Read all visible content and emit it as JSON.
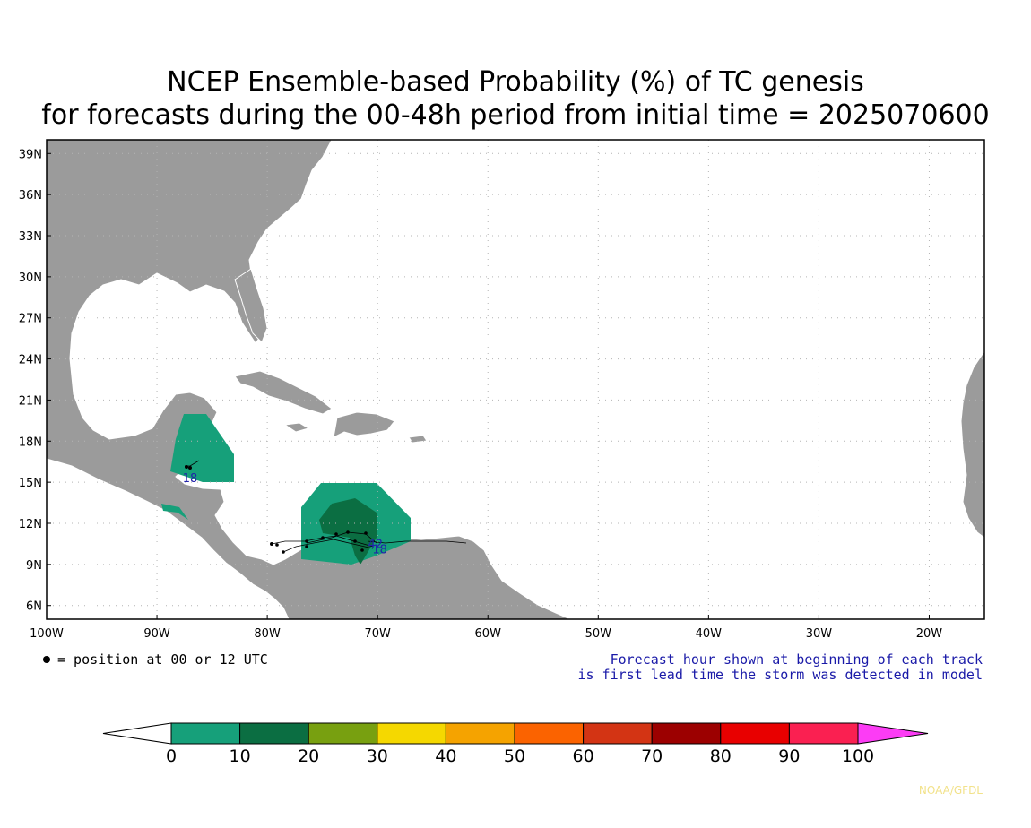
{
  "title": {
    "line1": "NCEP Ensemble-based Probability (%) of TC genesis",
    "line2": "for forecasts during the 00-48h period from initial time = 2025070600"
  },
  "map": {
    "lat_labels": [
      "39N",
      "36N",
      "33N",
      "30N",
      "27N",
      "24N",
      "21N",
      "18N",
      "15N",
      "12N",
      "9N",
      "6N"
    ],
    "lon_labels": [
      "100W",
      "90W",
      "80W",
      "70W",
      "60W",
      "50W",
      "40W",
      "30W",
      "20W"
    ],
    "lon_range": [
      -100,
      -15
    ],
    "lat_range": [
      5,
      40
    ],
    "gridlines": true,
    "land_color": "#9b9b9b",
    "ocean_color": "#ffffff"
  },
  "genesis_areas": [
    {
      "name": "Yucatan / Belize",
      "probability_bin": "0-10",
      "color": "#16a07a"
    },
    {
      "name": "Southern Caribbean",
      "probability_bin": "0-10",
      "color": "#16a07a"
    },
    {
      "name": "Southern Caribbean core",
      "probability_bin": "10-20",
      "color": "#0b6e42"
    }
  ],
  "track_hour_labels": [
    {
      "text": "18",
      "lon": -87.0,
      "lat": 15.0
    },
    {
      "text": "42",
      "lon": -70.2,
      "lat": 10.2
    },
    {
      "text": "18",
      "lon": -69.8,
      "lat": 9.8
    }
  ],
  "position_legend": "= position at 00 or 12 UTC",
  "forecast_note": {
    "line1": "Forecast hour shown at beginning of each track",
    "line2": "is first lead time the storm was detected in model"
  },
  "colorbar": {
    "labels": [
      "0",
      "10",
      "20",
      "30",
      "40",
      "50",
      "60",
      "70",
      "80",
      "90",
      "100"
    ],
    "colors": [
      "#16a07a",
      "#0b6e42",
      "#78a010",
      "#f5d800",
      "#f5a300",
      "#fb6300",
      "#d33414",
      "#9c0000",
      "#e80000",
      "#fa2051"
    ],
    "under_color": "#ffffff",
    "over_color": "#fc3cf5"
  },
  "credit": "NOAA/GFDL"
}
